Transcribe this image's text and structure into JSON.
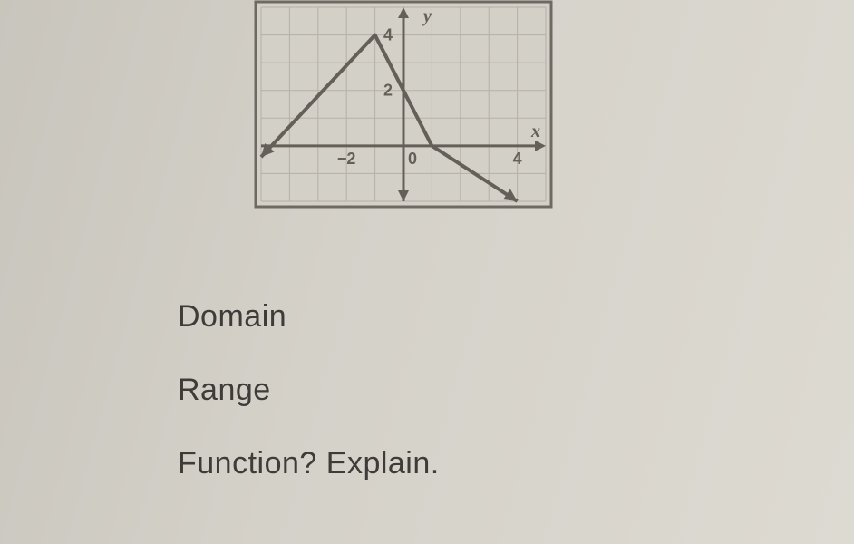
{
  "graph": {
    "type": "line",
    "frame": {
      "border_color": "#6e6a63",
      "border_width": 3,
      "background": "#d3d0c8"
    },
    "grid": {
      "color": "#b5b1a9",
      "spacing": 1,
      "xrange": [
        -5,
        5
      ],
      "yrange": [
        -2,
        5
      ]
    },
    "axes": {
      "color": "#646059",
      "width": 3,
      "arrow": true,
      "xlabel": "x",
      "ylabel": "y",
      "tick_labels": {
        "x": [
          {
            "v": -2,
            "text": "−2"
          },
          {
            "v": 0,
            "text": "0"
          },
          {
            "v": 4,
            "text": "4"
          }
        ],
        "y": [
          {
            "v": 2,
            "text": "2"
          },
          {
            "v": 4,
            "text": "4"
          }
        ]
      },
      "label_fontsize": 20,
      "tick_fontsize": 18
    },
    "series": {
      "color": "#646059",
      "width": 4,
      "points": [
        [
          -5,
          -0.4
        ],
        [
          -1,
          4
        ],
        [
          1,
          0
        ],
        [
          4,
          -2
        ]
      ],
      "start_arrow": true,
      "end_arrow": true
    }
  },
  "prompts": {
    "domain": "Domain",
    "range": "Range",
    "function": "Function? Explain."
  }
}
